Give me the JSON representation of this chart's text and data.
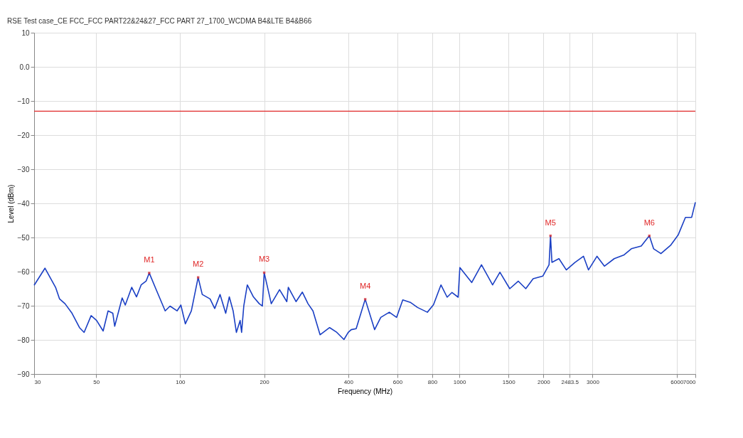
{
  "chart_data": {
    "type": "line",
    "title": "RSE Test case_CE FCC_FCC PART22&24&27_FCC PART 27_1700_WCDMA B4&LTE B4&B66",
    "xlabel": "Frequency (MHz)",
    "ylabel": "Level (dBm)",
    "log": "x",
    "grid": true,
    "marker": "none",
    "line_style": "solid",
    "xlim": [
      30,
      7000
    ],
    "xticks": [
      30,
      50,
      100,
      200,
      400,
      600,
      800,
      1000,
      1500,
      2000,
      2483.5,
      3000,
      6000,
      7000
    ],
    "ylim": [
      -90,
      10
    ],
    "yticks": [
      -90,
      -80,
      -70,
      -60,
      -50,
      -40,
      -30,
      -20,
      -10,
      {
        "value": 0,
        "label": "0.0"
      },
      10
    ],
    "x": [
      30,
      32.8,
      35.8,
      37,
      38.7,
      41,
      43.6,
      45.3,
      48,
      50.2,
      53,
      55.2,
      57.4,
      58.3,
      62,
      63.6,
      67.1,
      69.8,
      72.5,
      75.5,
      77.5,
      81.7,
      88.4,
      92,
      97.5,
      100.6,
      104.4,
      109.7,
      116,
      120,
      128,
      133,
      139,
      145.6,
      150,
      154.8,
      159,
      164,
      166,
      169,
      174,
      183,
      192,
      197,
      200,
      212,
      227,
      241,
      244,
      260,
      274,
      287,
      299,
      317,
      343,
      364,
      386,
      400,
      410,
      427,
      460,
      497,
      523,
      561,
      596,
      627,
      667,
      708,
      768,
      808,
      859,
      904,
      941,
      990,
      1004,
      1107,
      1200,
      1315,
      1397,
      1515,
      1626,
      1729,
      1837,
      1991,
      2095,
      2120,
      2145,
      2273,
      2415,
      2593,
      2783,
      2899,
      3111,
      3306,
      3586,
      3890,
      4130,
      4480,
      4790,
      4960,
      5270,
      5720,
      6080,
      6450,
      6790,
      7000
    ],
    "series": [
      {
        "color": "#1a3fc4",
        "values": [
          -64,
          -59,
          -64.6,
          -68,
          -69.4,
          -72.2,
          -76.4,
          -77.8,
          -72.9,
          -74.3,
          -77.4,
          -71.5,
          -72.2,
          -76,
          -67.7,
          -69.8,
          -64.6,
          -67.4,
          -63.9,
          -62.8,
          -60.4,
          -64.9,
          -71.5,
          -70.1,
          -71.5,
          -69.8,
          -75.3,
          -71.5,
          -61.7,
          -66.7,
          -68,
          -70.8,
          -66.7,
          -72.2,
          -67.4,
          -71.5,
          -77.8,
          -74.3,
          -77.8,
          -70.1,
          -63.9,
          -67.4,
          -69.4,
          -70.1,
          -60.3,
          -69.4,
          -65.3,
          -68.8,
          -64.6,
          -68.8,
          -66,
          -69.4,
          -71.5,
          -78.5,
          -76.4,
          -77.8,
          -79.9,
          -77.8,
          -77,
          -76.7,
          -68.1,
          -77,
          -73.4,
          -71.9,
          -73.4,
          -68.3,
          -69,
          -70.5,
          -71.9,
          -69.7,
          -63.9,
          -67.5,
          -66.1,
          -67.5,
          -58.8,
          -63.2,
          -58,
          -63.9,
          -60.2,
          -65,
          -62.8,
          -65,
          -62.1,
          -61.3,
          -58,
          -49.5,
          -57.3,
          -56.2,
          -59.5,
          -57.3,
          -55.5,
          -59.5,
          -55.5,
          -58.4,
          -56.2,
          -55.1,
          -53.3,
          -52.5,
          -49.5,
          -53.3,
          -54.7,
          -52.2,
          -49.2,
          -44.1,
          -44.1,
          -39.7
        ]
      }
    ],
    "ref_lines": [
      {
        "axis": "y",
        "value": -13,
        "color": "#e02828"
      }
    ],
    "annotations": [
      {
        "text": "M1",
        "x": 77.5,
        "y": -60.4
      },
      {
        "text": "M2",
        "x": 116,
        "y": -61.7
      },
      {
        "text": "M3",
        "x": 200,
        "y": -60.3
      },
      {
        "text": "M4",
        "x": 460,
        "y": -68.1
      },
      {
        "text": "M5",
        "x": 2120,
        "y": -49.5
      },
      {
        "text": "M6",
        "x": 4790,
        "y": -49.5
      }
    ]
  }
}
